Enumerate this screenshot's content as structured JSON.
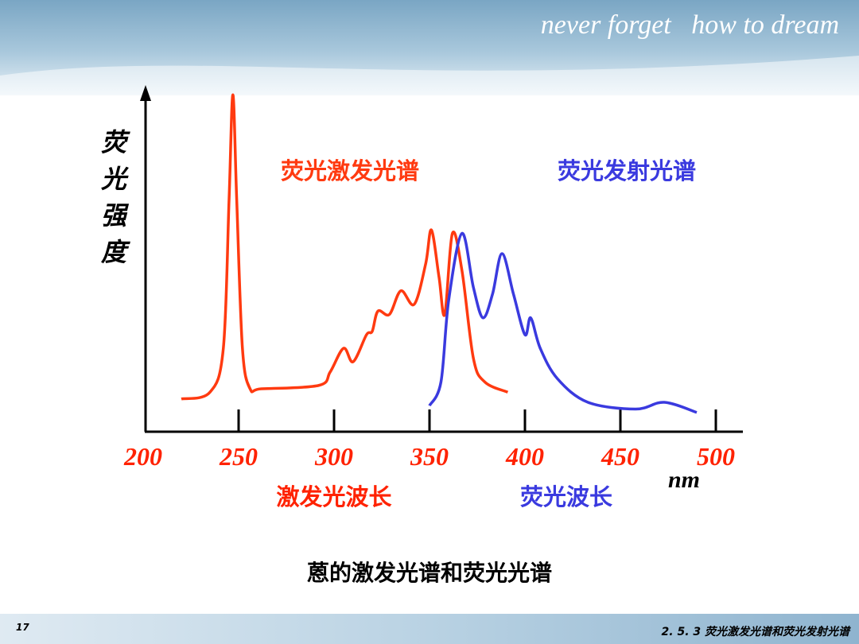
{
  "header": {
    "tagline": "never forget   how to dream"
  },
  "chart_data": {
    "type": "line",
    "y_label": "荧光强度",
    "x_labels": [
      {
        "text": "激发光波长",
        "color": "#ff2200"
      },
      {
        "text": "荧光波长",
        "color": "#3a3adf"
      }
    ],
    "x_unit": "nm",
    "xlim": [
      200,
      500
    ],
    "xticks": [
      200,
      250,
      300,
      350,
      400,
      450,
      500
    ],
    "ylim": [
      0,
      100
    ],
    "series": [
      {
        "name": "荧光激发光谱",
        "color": "#ff3a10",
        "x": [
          220,
          235,
          242,
          245,
          247,
          249,
          252,
          256,
          262,
          292,
          298,
          305,
          310,
          317,
          320,
          323,
          329,
          335,
          342,
          348,
          351,
          355,
          358,
          362,
          367,
          373,
          379,
          391
        ],
        "values": [
          9,
          11,
          24,
          68,
          99,
          68,
          24,
          12,
          12,
          13,
          17,
          24,
          20,
          28,
          29,
          35,
          34,
          41,
          37,
          49,
          59,
          45,
          34,
          58,
          47,
          21,
          14,
          11
        ]
      },
      {
        "name": "荧光发射光谱",
        "color": "#3a3adf",
        "x": [
          350,
          356,
          360,
          367,
          373,
          378,
          383,
          388,
          394,
          400,
          403,
          408,
          417,
          433,
          458,
          473,
          490
        ],
        "values": [
          7,
          14,
          38,
          58,
          42,
          33,
          40,
          52,
          40,
          28,
          33,
          24,
          15,
          8,
          6,
          8,
          5
        ]
      }
    ]
  },
  "caption": "蒽的激发光谱和荧光光谱",
  "footer": {
    "page": "17",
    "section": "2. 5. 3 荧光激发光谱和荧光发射光谱"
  }
}
